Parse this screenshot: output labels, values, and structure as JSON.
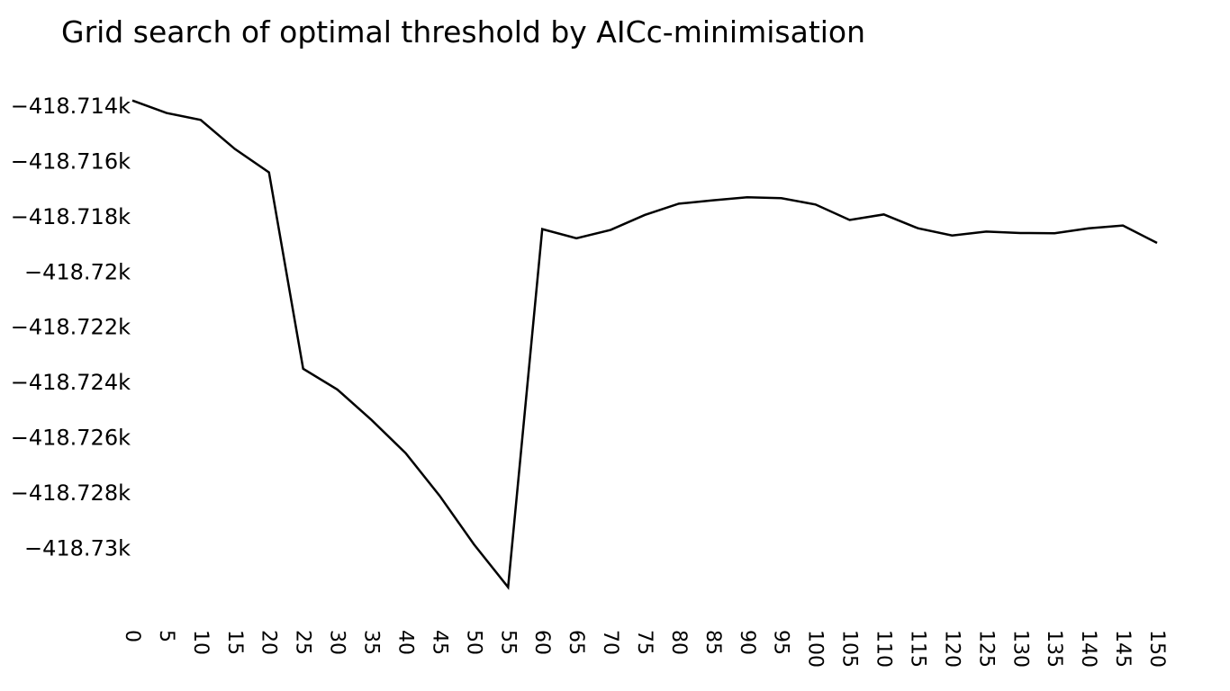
{
  "chart_data": {
    "type": "line",
    "title": "Grid search of optimal threshold by AICc-minimisation",
    "xlabel": "",
    "ylabel": "",
    "grid": false,
    "legend": "none",
    "line_color": "#000000",
    "xlim": [
      0,
      150
    ],
    "ylim": [
      -418.7319,
      -418.7128
    ],
    "x": [
      0,
      5,
      10,
      15,
      20,
      25,
      30,
      35,
      40,
      45,
      50,
      55,
      60,
      65,
      70,
      75,
      80,
      85,
      90,
      95,
      100,
      105,
      110,
      115,
      120,
      125,
      130,
      135,
      140,
      145,
      150
    ],
    "series": [
      {
        "values": [
          -418.7138,
          -418.71425,
          -418.7145,
          -418.71555,
          -418.7164,
          -418.7235,
          -418.72425,
          -418.72535,
          -418.72655,
          -418.7281,
          -418.72985,
          -418.7314,
          -418.71845,
          -418.71878,
          -418.71848,
          -418.71794,
          -418.71753,
          -418.71741,
          -418.7173,
          -418.71733,
          -418.71756,
          -418.71812,
          -418.71792,
          -418.71842,
          -418.71868,
          -418.71854,
          -418.71859,
          -418.7186,
          -418.71842,
          -418.71832,
          -418.71895
        ]
      }
    ],
    "x_ticks": [
      "0",
      "5",
      "10",
      "15",
      "20",
      "25",
      "30",
      "35",
      "40",
      "45",
      "50",
      "55",
      "60",
      "65",
      "70",
      "75",
      "80",
      "85",
      "90",
      "95",
      "100",
      "105",
      "110",
      "115",
      "120",
      "125",
      "130",
      "135",
      "140",
      "145",
      "150"
    ],
    "y_ticks": [
      {
        "value": -418.714,
        "label": "−418.714k"
      },
      {
        "value": -418.716,
        "label": "−418.716k"
      },
      {
        "value": -418.718,
        "label": "−418.718k"
      },
      {
        "value": -418.72,
        "label": "−418.72k"
      },
      {
        "value": -418.722,
        "label": "−418.722k"
      },
      {
        "value": -418.724,
        "label": "−418.724k"
      },
      {
        "value": -418.726,
        "label": "−418.726k"
      },
      {
        "value": -418.728,
        "label": "−418.728k"
      },
      {
        "value": -418.73,
        "label": "−418.73k"
      }
    ]
  }
}
